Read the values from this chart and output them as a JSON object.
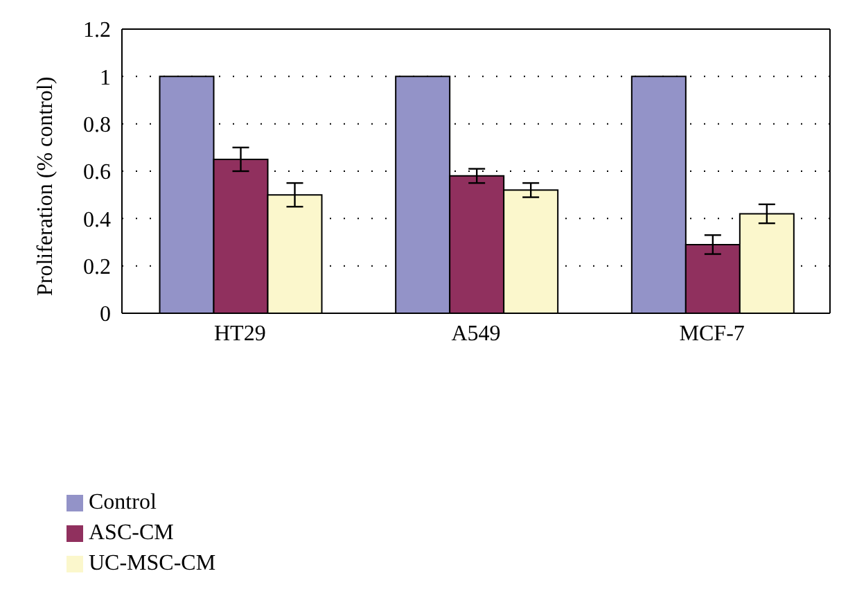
{
  "chart_data": {
    "type": "bar",
    "ylabel": "Proliferation (% control)",
    "categories": [
      "HT29",
      "A549",
      "MCF-7"
    ],
    "series": [
      {
        "name": "Control",
        "color": "#9393c8",
        "values": [
          1,
          1,
          1
        ]
      },
      {
        "name": "ASC-CM",
        "color": "#90305e",
        "values": [
          0.65,
          0.58,
          0.29
        ],
        "errors": [
          0.05,
          0.03,
          0.04
        ]
      },
      {
        "name": "UC-MSC-CM",
        "color": "#fbf7cc",
        "values": [
          0.5,
          0.52,
          0.42
        ],
        "errors": [
          0.05,
          0.03,
          0.04
        ]
      }
    ],
    "ylim": [
      0,
      1.2
    ],
    "yticks": [
      0,
      0.2,
      0.4,
      0.6,
      0.8,
      1,
      1.2
    ],
    "grid": "y",
    "legend": "bottom left"
  }
}
